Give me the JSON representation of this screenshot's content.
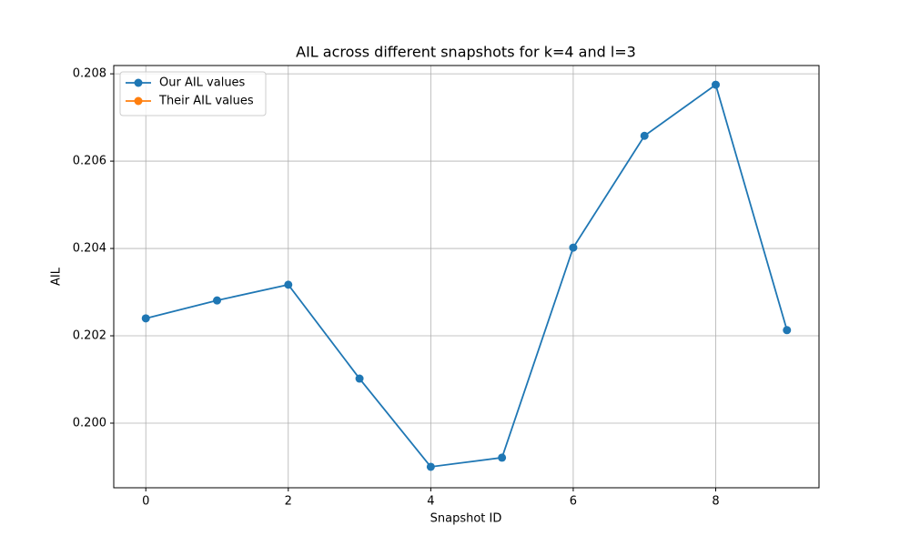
{
  "chart_data": {
    "type": "line",
    "title": "AIL across different snapshots for k=4 and l=3",
    "xlabel": "Snapshot ID",
    "ylabel": "AIL",
    "x": [
      0,
      1,
      2,
      3,
      4,
      5,
      6,
      7,
      8,
      9
    ],
    "series": [
      {
        "name": "Our AIL values",
        "color": "#1f77b4",
        "values": [
          0.2024,
          0.20281,
          0.20317,
          0.20102,
          0.199,
          0.19921,
          0.20402,
          0.20658,
          0.20775,
          0.20213
        ]
      },
      {
        "name": "Their AIL values",
        "color": "#ff7f0e",
        "values": [
          null,
          null,
          null,
          null,
          null,
          null,
          null,
          null,
          null,
          null
        ]
      }
    ],
    "xlim": [
      -0.45,
      9.45
    ],
    "xticks": [
      0,
      2,
      4,
      6,
      8
    ],
    "ylim": [
      0.19852,
      0.20819
    ],
    "yticks": [
      {
        "value": 0.2,
        "label": "0.200"
      },
      {
        "value": 0.202,
        "label": "0.202"
      },
      {
        "value": 0.204,
        "label": "0.204"
      },
      {
        "value": 0.206,
        "label": "0.206"
      },
      {
        "value": 0.208,
        "label": "0.208"
      }
    ],
    "grid": true,
    "legend": "upper left"
  }
}
